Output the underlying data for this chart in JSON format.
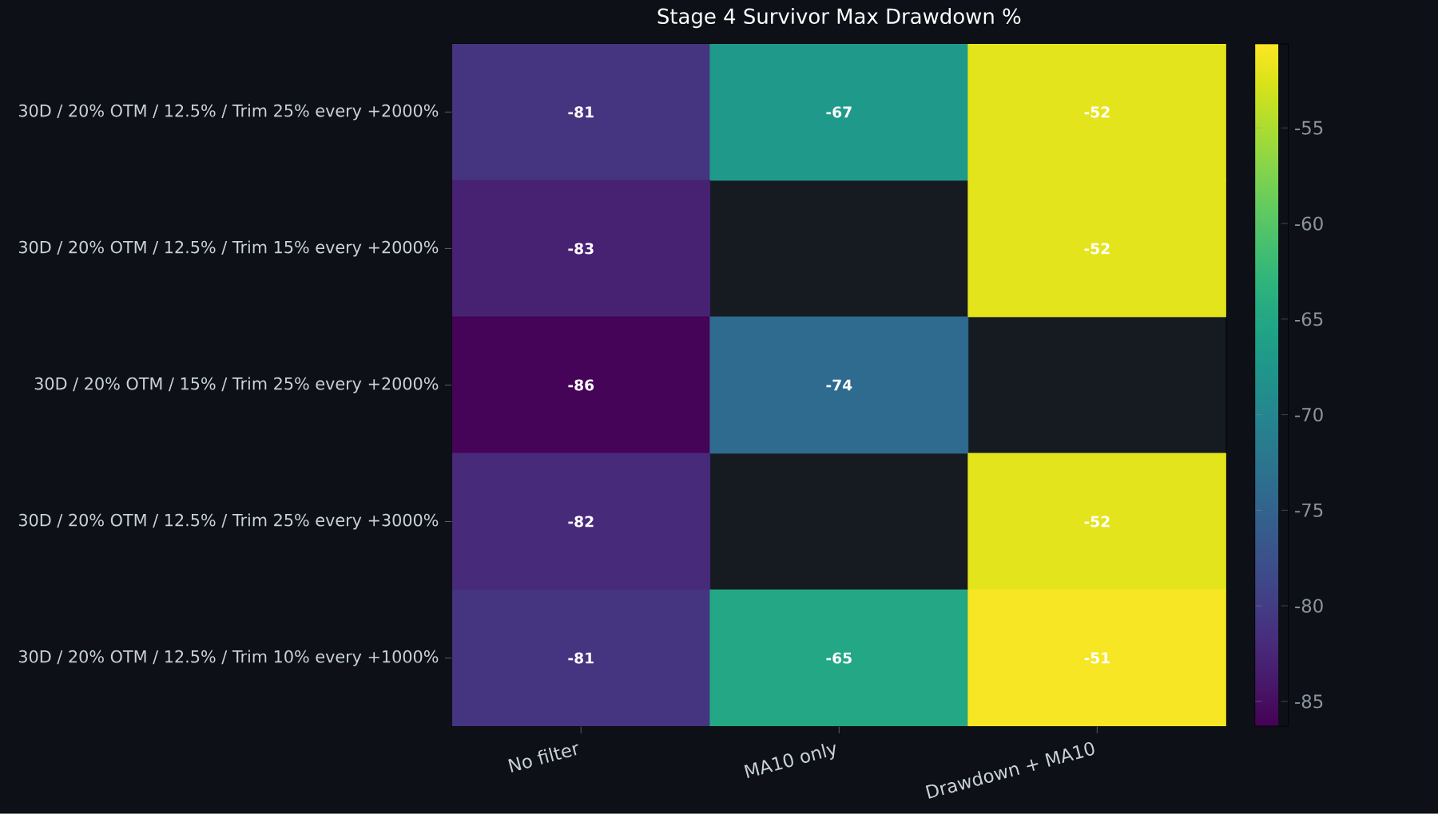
{
  "chart_data": {
    "type": "heatmap",
    "title": "Stage 4 Survivor Max Drawdown %",
    "categories": [
      "No filter",
      "MA10 only",
      "Drawdown + MA10"
    ],
    "y_categories": [
      "30D / 20% OTM / 12.5% / Trim 25% every +2000%",
      "30D / 20% OTM / 12.5% / Trim 15% every +2000%",
      "30D / 20% OTM / 15% / Trim 25% every +2000%",
      "30D / 20% OTM / 12.5% / Trim 25% every +3000%",
      "30D / 20% OTM / 12.5% / Trim 10% every +1000%"
    ],
    "cells": [
      [
        -81,
        -67,
        -52
      ],
      [
        -83,
        null,
        -52
      ],
      [
        -86,
        -74,
        null
      ],
      [
        -82,
        null,
        -52
      ],
      [
        -81,
        -65,
        -51
      ]
    ],
    "data_labels": true,
    "clim": [
      -86.3,
      -50.6
    ],
    "cticks": [
      -85,
      -80,
      -75,
      -70,
      -65,
      -60,
      -55
    ]
  }
}
